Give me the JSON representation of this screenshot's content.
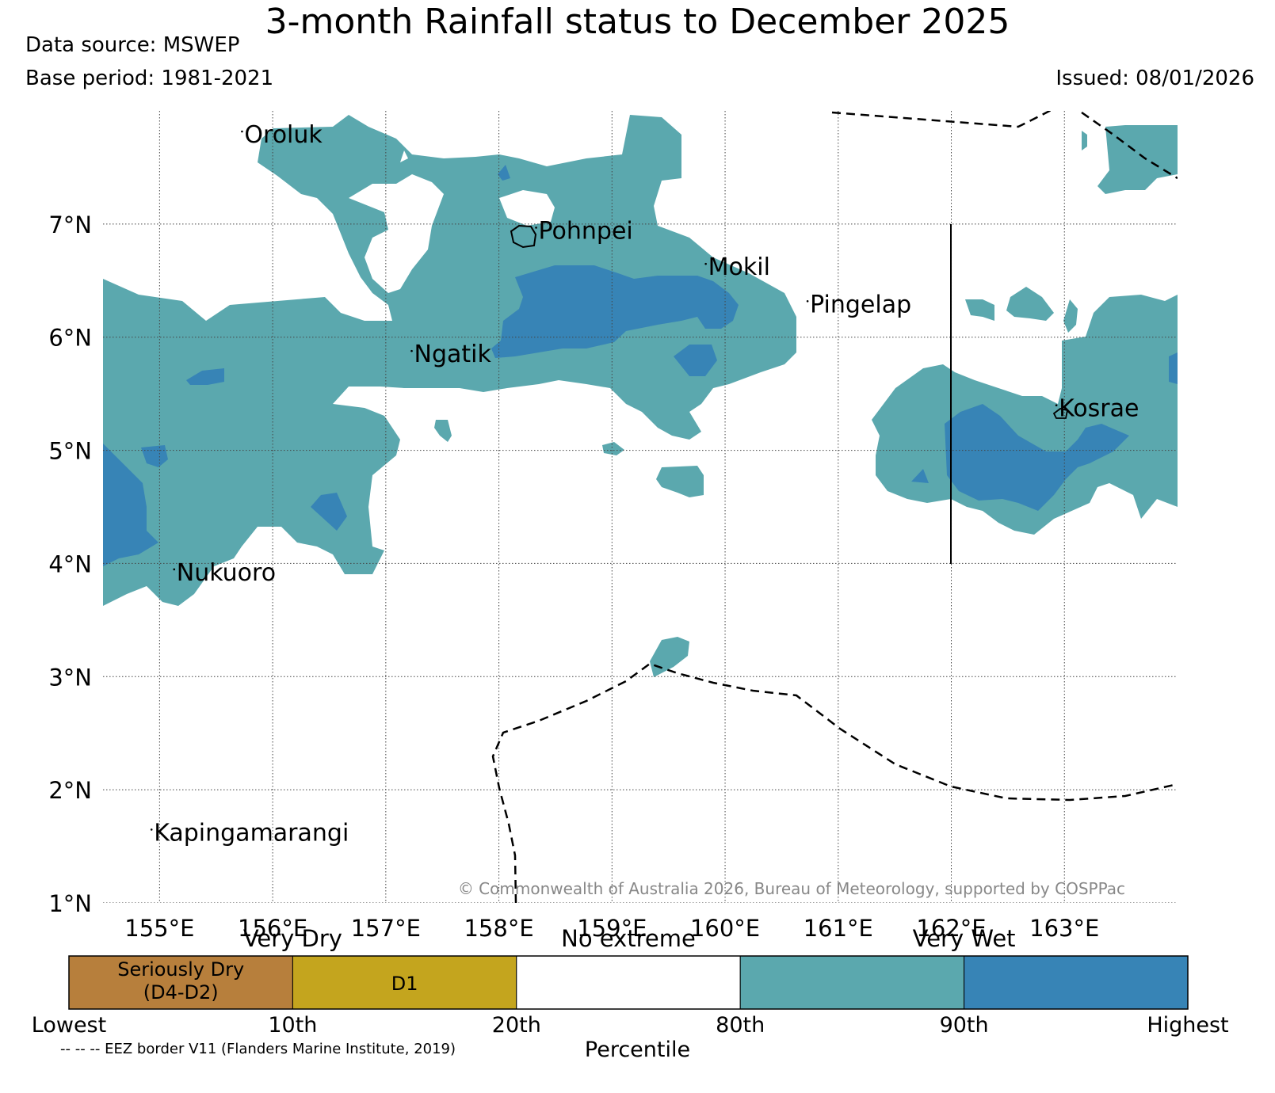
{
  "header": {
    "title": "3-month Rainfall status to December 2025",
    "data_source": "Data source: MSWEP",
    "base_period": "Base period: 1981-2021",
    "issued": "Issued: 08/01/2026"
  },
  "map": {
    "lon_range": [
      154.5,
      164.0
    ],
    "lat_range": [
      1.0,
      8.0
    ],
    "x_ticks": [
      "155°E",
      "156°E",
      "157°E",
      "158°E",
      "159°E",
      "160°E",
      "161°E",
      "162°E",
      "163°E"
    ],
    "y_ticks": [
      "7°N",
      "6°N",
      "5°N",
      "4°N",
      "3°N",
      "2°N",
      "1°N"
    ],
    "places": [
      {
        "name": "Oroluk",
        "lon": 155.75,
        "lat": 7.72
      },
      {
        "name": "Pohnpei",
        "lon": 158.35,
        "lat": 6.87
      },
      {
        "name": "Mokil",
        "lon": 159.85,
        "lat": 6.55
      },
      {
        "name": "Pingelap",
        "lon": 160.75,
        "lat": 6.22
      },
      {
        "name": "Ngatik",
        "lon": 157.25,
        "lat": 5.78
      },
      {
        "name": "Kosrae",
        "lon": 162.95,
        "lat": 5.3
      },
      {
        "name": "Nukuoro",
        "lon": 155.15,
        "lat": 3.85
      },
      {
        "name": "Kapingamarangi",
        "lon": 154.95,
        "lat": 1.55
      }
    ],
    "copyright": "© Commonwealth of Australia 2026, Bureau of Meteorology, supported by COSPPac",
    "colors": {
      "very_wet_80_90": "#5ba8ae",
      "very_wet_90_highest": "#3784b6",
      "seriously_dry": "#b77f3c",
      "d1": "#c4a51e",
      "no_extreme": "#ffffff"
    }
  },
  "colorbar": {
    "group_labels": [
      "Very Dry",
      "No extreme",
      "Very Wet"
    ],
    "segments": [
      {
        "label_line1": "Seriously Dry",
        "label_line2": "(D4-D2)",
        "color": "#b77f3c"
      },
      {
        "label_line1": "D1",
        "label_line2": "",
        "color": "#c4a51e"
      },
      {
        "label_line1": "",
        "label_line2": "",
        "color": "#ffffff"
      },
      {
        "label_line1": "",
        "label_line2": "",
        "color": "#5ba8ae"
      },
      {
        "label_line1": "",
        "label_line2": "",
        "color": "#3784b6"
      }
    ],
    "tick_labels": [
      "Lowest",
      "10th",
      "20th",
      "80th",
      "90th",
      "Highest"
    ],
    "axis_label": "Percentile"
  },
  "footer": {
    "eez_note": "-- -- -- EEZ border V11 (Flanders Marine Institute, 2019)"
  }
}
